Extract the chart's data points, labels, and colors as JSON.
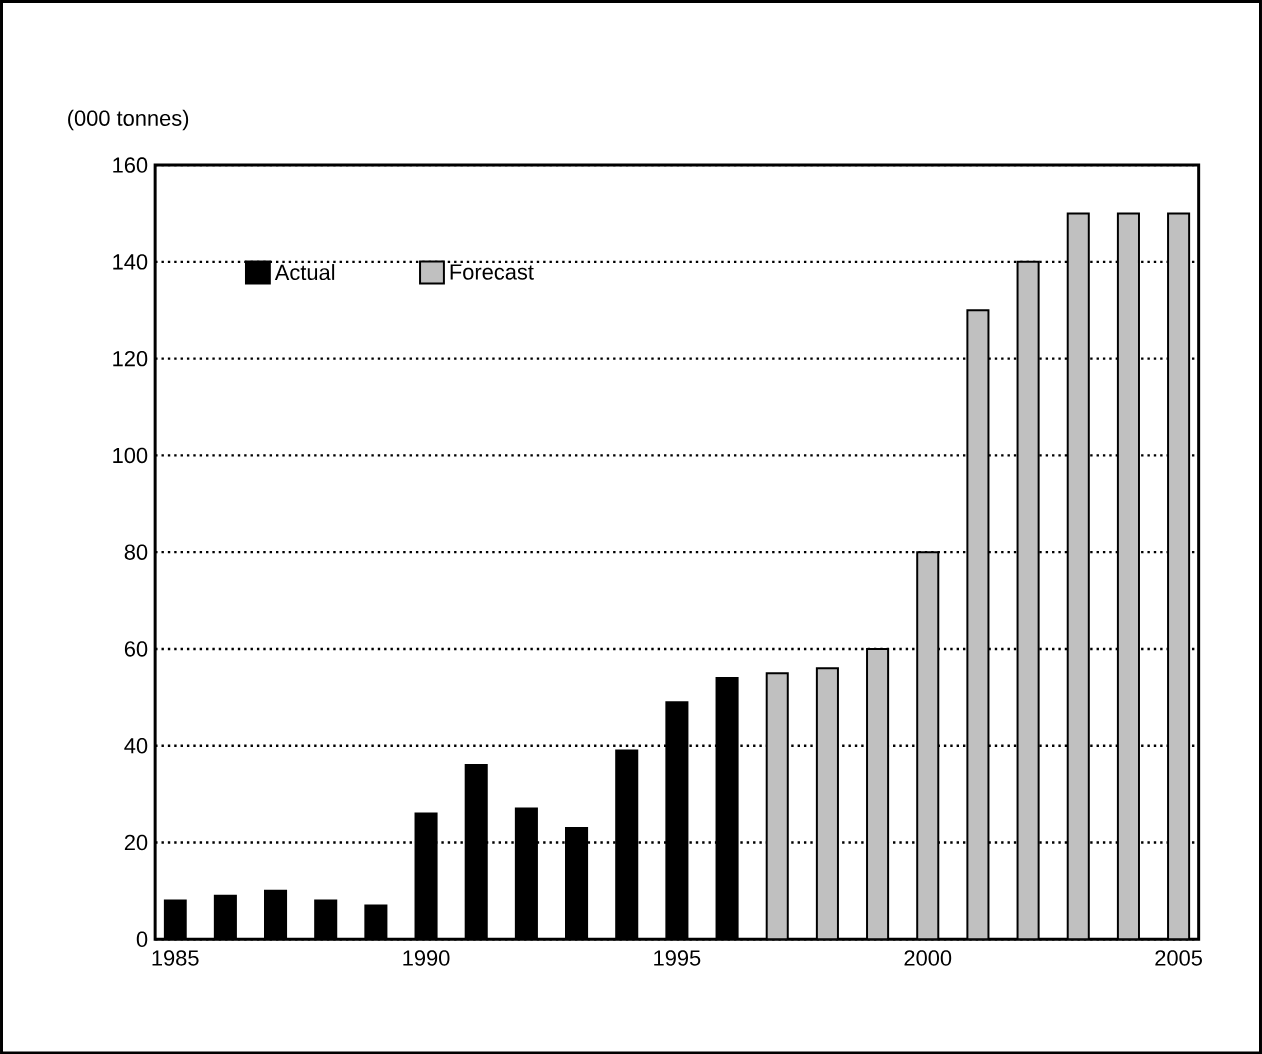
{
  "chart_data": {
    "type": "bar",
    "ylabel": "(000 tonnes)",
    "series": [
      {
        "name": "Actual",
        "color": "#000000",
        "x": [
          1985,
          1986,
          1987,
          1988,
          1989,
          1990,
          1991,
          1992,
          1993,
          1994,
          1995,
          1996
        ],
        "values": [
          8,
          9,
          10,
          8,
          7,
          26,
          36,
          27,
          23,
          39,
          49,
          54
        ]
      },
      {
        "name": "Forecast",
        "color": "#c0c0c0",
        "x": [
          1997,
          1998,
          1999,
          2000,
          2001,
          2002,
          2003,
          2004,
          2005
        ],
        "values": [
          55,
          56,
          60,
          80,
          130,
          140,
          150,
          150,
          150
        ]
      }
    ],
    "xlim": [
      1984.6,
      2005.4
    ],
    "xticks": [
      1985,
      1990,
      1995,
      2000,
      2005
    ],
    "ylim": [
      0,
      160
    ],
    "yticks": [
      0,
      20,
      40,
      60,
      80,
      100,
      120,
      140,
      160
    ],
    "grid": "y",
    "legend": "top left"
  }
}
